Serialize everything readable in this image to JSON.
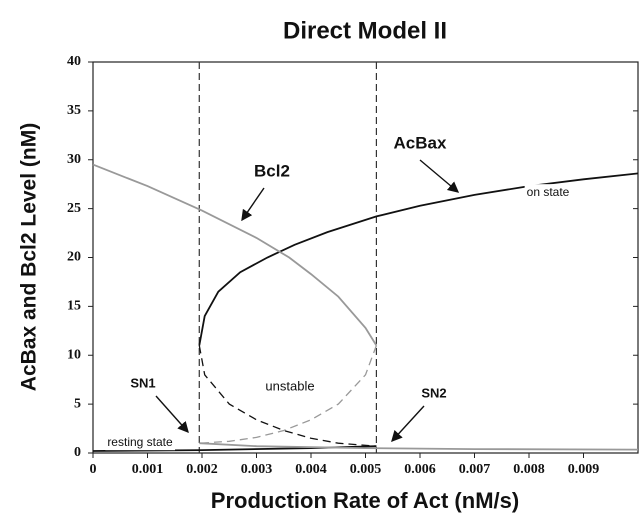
{
  "chart_data": {
    "type": "line",
    "title": "Direct Model II",
    "xlabel": "Production Rate of Act (nM/s)",
    "ylabel": "AcBax and Bcl2 Level (nM)",
    "xlim": [
      0,
      0.01
    ],
    "ylim": [
      0,
      40
    ],
    "xticks": [
      0,
      0.001,
      0.002,
      0.003,
      0.004,
      0.005,
      0.006,
      0.007,
      0.008,
      0.009
    ],
    "yticks": [
      0,
      5,
      10,
      15,
      20,
      25,
      30,
      35,
      40
    ],
    "vlines": [
      0.00195,
      0.0052
    ],
    "series": [
      {
        "color": "#111111",
        "dashed": false,
        "x": [
          0.00195,
          0.00205,
          0.0023,
          0.0027,
          0.0032,
          0.0037,
          0.0043,
          0.0052,
          0.006,
          0.007,
          0.008,
          0.009,
          0.01
        ],
        "values": [
          11,
          14,
          16.5,
          18.5,
          20,
          21.3,
          22.6,
          24.2,
          25.3,
          26.4,
          27.3,
          28,
          28.6
        ]
      },
      {
        "color": "#111111",
        "dashed": true,
        "x": [
          0.00195,
          0.00205,
          0.0025,
          0.003,
          0.0035,
          0.004,
          0.0045,
          0.0052
        ],
        "values": [
          11,
          8,
          5,
          3.4,
          2.3,
          1.5,
          1,
          0.7
        ]
      },
      {
        "color": "#111111",
        "dashed": false,
        "x": [
          0,
          0.002,
          0.004,
          0.0052
        ],
        "values": [
          0.2,
          0.3,
          0.5,
          0.7
        ]
      },
      {
        "color": "#999999",
        "dashed": false,
        "x": [
          0,
          0.001,
          0.002,
          0.003,
          0.0036,
          0.004,
          0.0045,
          0.005,
          0.0052
        ],
        "values": [
          29.5,
          27.3,
          24.8,
          22,
          20,
          18.3,
          16,
          12.8,
          11
        ]
      },
      {
        "color": "#999999",
        "dashed": true,
        "x": [
          0.0052,
          0.005,
          0.0045,
          0.004,
          0.0035,
          0.003,
          0.0025,
          0.00195
        ],
        "values": [
          11,
          8,
          5,
          3.4,
          2.3,
          1.6,
          1.2,
          1
        ]
      },
      {
        "color": "#999999",
        "dashed": false,
        "x": [
          0.00195,
          0.003,
          0.005,
          0.007,
          0.01
        ],
        "values": [
          1,
          0.7,
          0.5,
          0.4,
          0.35
        ]
      }
    ],
    "annotations": [
      "Bcl2",
      "AcBax",
      "on state",
      "unstable",
      "resting state",
      "SN1",
      "SN2"
    ]
  }
}
